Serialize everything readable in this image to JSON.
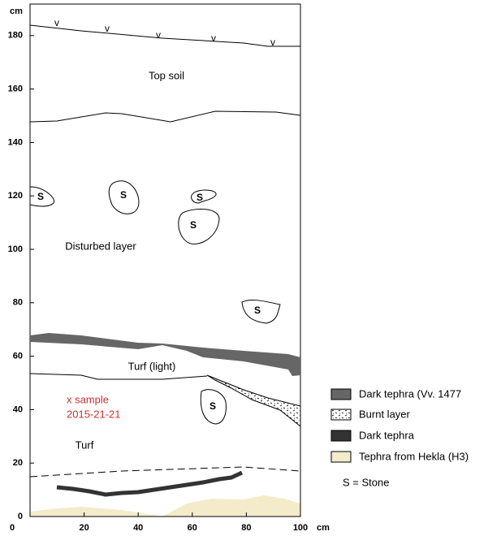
{
  "axes": {
    "y_unit": "cm",
    "x_unit": "cm",
    "y_ticks": [
      0,
      20,
      40,
      60,
      80,
      100,
      120,
      140,
      160,
      180
    ],
    "x_ticks": [
      20,
      40,
      60,
      80,
      100
    ]
  },
  "surface_marks": [
    "v",
    "v",
    "v",
    "v",
    "v"
  ],
  "layers": [
    "Top soil",
    "Disturbed layer",
    "Turf (light)",
    "Turf"
  ],
  "sample": [
    "x sample",
    "2015-21-21"
  ],
  "stones": [
    "S",
    "S",
    "S",
    "S",
    "S",
    "S"
  ],
  "legend": [
    "Dark tephra (Vv. 1477",
    "Burnt layer",
    "Dark tephra",
    "Tephra from Hekla (H3)",
    "S = Stone"
  ]
}
